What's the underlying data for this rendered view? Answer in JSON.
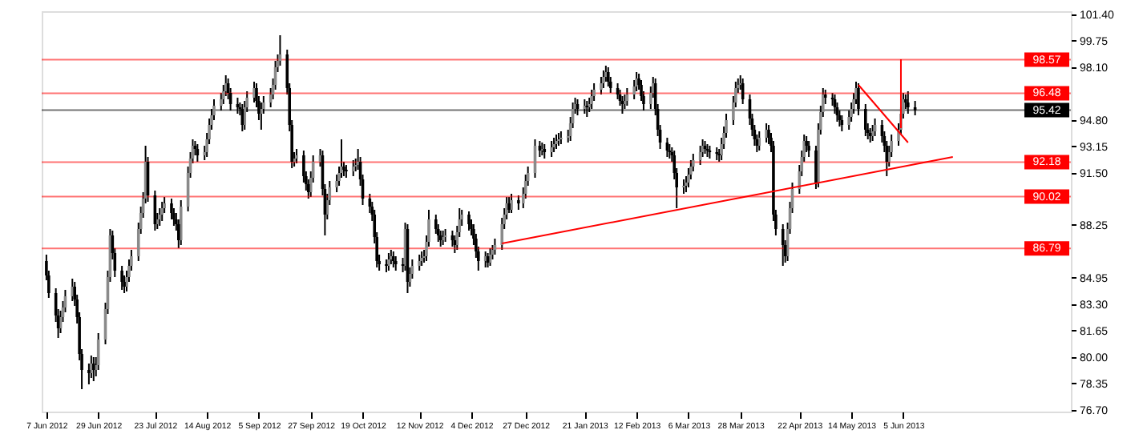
{
  "chart_data": {
    "type": "candlestick",
    "x": [
      "2012-06-07",
      "2012-06-08",
      "2012-06-11",
      "2012-06-12",
      "2012-06-13",
      "2012-06-14",
      "2012-06-15",
      "2012-06-18",
      "2012-06-19",
      "2012-06-20",
      "2012-06-21",
      "2012-06-22",
      "2012-06-25",
      "2012-06-26",
      "2012-06-27",
      "2012-06-28",
      "2012-06-29",
      "2012-07-02",
      "2012-07-03",
      "2012-07-04",
      "2012-07-05",
      "2012-07-06",
      "2012-07-09",
      "2012-07-10",
      "2012-07-11",
      "2012-07-12",
      "2012-07-13",
      "2012-07-16",
      "2012-07-17",
      "2012-07-18",
      "2012-07-19",
      "2012-07-20",
      "2012-07-23",
      "2012-07-24",
      "2012-07-25",
      "2012-07-26",
      "2012-07-27",
      "2012-07-30",
      "2012-07-31",
      "2012-08-01",
      "2012-08-02",
      "2012-08-03",
      "2012-08-06",
      "2012-08-07",
      "2012-08-08",
      "2012-08-09",
      "2012-08-10",
      "2012-08-13",
      "2012-08-14",
      "2012-08-15",
      "2012-08-16",
      "2012-08-17",
      "2012-08-20",
      "2012-08-21",
      "2012-08-22",
      "2012-08-23",
      "2012-08-24",
      "2012-08-27",
      "2012-08-28",
      "2012-08-29",
      "2012-08-30",
      "2012-08-31",
      "2012-09-03",
      "2012-09-04",
      "2012-09-05",
      "2012-09-06",
      "2012-09-07",
      "2012-09-10",
      "2012-09-11",
      "2012-09-12",
      "2012-09-13",
      "2012-09-14",
      "2012-09-17",
      "2012-09-18",
      "2012-09-19",
      "2012-09-20",
      "2012-09-21",
      "2012-09-24",
      "2012-09-25",
      "2012-09-26",
      "2012-09-27",
      "2012-09-28",
      "2012-10-01",
      "2012-10-02",
      "2012-10-03",
      "2012-10-04",
      "2012-10-05",
      "2012-10-08",
      "2012-10-09",
      "2012-10-10",
      "2012-10-11",
      "2012-10-12",
      "2012-10-15",
      "2012-10-16",
      "2012-10-17",
      "2012-10-18",
      "2012-10-19",
      "2012-10-22",
      "2012-10-23",
      "2012-10-24",
      "2012-10-25",
      "2012-10-26",
      "2012-10-29",
      "2012-10-30",
      "2012-10-31",
      "2012-11-01",
      "2012-11-02",
      "2012-11-05",
      "2012-11-06",
      "2012-11-07",
      "2012-11-08",
      "2012-11-09",
      "2012-11-12",
      "2012-11-13",
      "2012-11-14",
      "2012-11-15",
      "2012-11-16",
      "2012-11-19",
      "2012-11-20",
      "2012-11-21",
      "2012-11-22",
      "2012-11-23",
      "2012-11-26",
      "2012-11-27",
      "2012-11-28",
      "2012-11-29",
      "2012-11-30",
      "2012-12-03",
      "2012-12-04",
      "2012-12-05",
      "2012-12-06",
      "2012-12-07",
      "2012-12-10",
      "2012-12-11",
      "2012-12-12",
      "2012-12-13",
      "2012-12-14",
      "2012-12-17",
      "2012-12-18",
      "2012-12-19",
      "2012-12-20",
      "2012-12-21",
      "2012-12-24",
      "2012-12-26",
      "2012-12-27",
      "2012-12-28",
      "2012-12-31",
      "2013-01-02",
      "2013-01-03",
      "2013-01-04",
      "2013-01-07",
      "2013-01-08",
      "2013-01-09",
      "2013-01-10",
      "2013-01-11",
      "2013-01-14",
      "2013-01-15",
      "2013-01-16",
      "2013-01-17",
      "2013-01-18",
      "2013-01-21",
      "2013-01-22",
      "2013-01-23",
      "2013-01-24",
      "2013-01-25",
      "2013-01-28",
      "2013-01-29",
      "2013-01-30",
      "2013-01-31",
      "2013-02-01",
      "2013-02-04",
      "2013-02-05",
      "2013-02-06",
      "2013-02-07",
      "2013-02-08",
      "2013-02-11",
      "2013-02-12",
      "2013-02-13",
      "2013-02-14",
      "2013-02-15",
      "2013-02-18",
      "2013-02-19",
      "2013-02-20",
      "2013-02-21",
      "2013-02-22",
      "2013-02-25",
      "2013-02-26",
      "2013-02-27",
      "2013-02-28",
      "2013-03-01",
      "2013-03-04",
      "2013-03-05",
      "2013-03-06",
      "2013-03-07",
      "2013-03-08",
      "2013-03-11",
      "2013-03-12",
      "2013-03-13",
      "2013-03-14",
      "2013-03-15",
      "2013-03-18",
      "2013-03-19",
      "2013-03-20",
      "2013-03-21",
      "2013-03-22",
      "2013-03-25",
      "2013-03-26",
      "2013-03-27",
      "2013-03-28",
      "2013-03-29",
      "2013-04-01",
      "2013-04-02",
      "2013-04-03",
      "2013-04-04",
      "2013-04-05",
      "2013-04-08",
      "2013-04-09",
      "2013-04-10",
      "2013-04-11",
      "2013-04-12",
      "2013-04-15",
      "2013-04-16",
      "2013-04-17",
      "2013-04-18",
      "2013-04-19",
      "2013-04-22",
      "2013-04-23",
      "2013-04-24",
      "2013-04-25",
      "2013-04-26",
      "2013-04-29",
      "2013-04-30",
      "2013-05-01",
      "2013-05-02",
      "2013-05-03",
      "2013-05-06",
      "2013-05-07",
      "2013-05-08",
      "2013-05-09",
      "2013-05-10",
      "2013-05-13",
      "2013-05-14",
      "2013-05-15",
      "2013-05-16",
      "2013-05-17",
      "2013-05-20",
      "2013-05-21",
      "2013-05-22",
      "2013-05-23",
      "2013-05-24",
      "2013-05-27",
      "2013-05-28",
      "2013-05-29",
      "2013-05-30",
      "2013-05-31",
      "2013-06-03",
      "2013-06-04",
      "2013-06-05",
      "2013-06-06",
      "2013-06-07",
      "2013-06-10"
    ],
    "ohlc": [
      [
        86.0,
        86.4,
        84.8,
        85.1
      ],
      [
        85.1,
        85.4,
        83.7,
        84.0
      ],
      [
        84.0,
        84.3,
        82.2,
        82.6
      ],
      [
        82.6,
        83.0,
        81.2,
        81.8
      ],
      [
        81.8,
        82.9,
        81.5,
        82.5
      ],
      [
        82.5,
        83.5,
        82.2,
        83.1
      ],
      [
        83.1,
        84.2,
        82.8,
        83.8
      ],
      [
        83.8,
        84.9,
        83.5,
        84.4
      ],
      [
        84.4,
        84.7,
        83.2,
        83.6
      ],
      [
        83.6,
        83.9,
        82.1,
        82.5
      ],
      [
        82.5,
        82.8,
        79.8,
        80.2
      ],
      [
        80.2,
        80.5,
        78.0,
        79.2
      ],
      [
        79.2,
        79.6,
        78.3,
        79.0
      ],
      [
        79.0,
        80.1,
        78.7,
        79.6
      ],
      [
        79.6,
        80.0,
        78.5,
        79.2
      ],
      [
        79.2,
        80.0,
        78.8,
        79.5
      ],
      [
        79.5,
        81.5,
        79.2,
        81.1
      ],
      [
        81.1,
        83.4,
        80.8,
        83.0
      ],
      [
        83.0,
        85.4,
        82.7,
        85.0
      ],
      [
        85.0,
        88.0,
        84.7,
        87.6
      ],
      [
        87.6,
        87.9,
        86.1,
        86.5
      ],
      [
        86.5,
        86.8,
        85.0,
        85.4
      ],
      [
        85.4,
        85.7,
        84.2,
        84.7
      ],
      [
        84.7,
        85.1,
        84.0,
        84.4
      ],
      [
        84.4,
        85.4,
        84.1,
        85.0
      ],
      [
        85.0,
        86.1,
        84.7,
        85.7
      ],
      [
        85.7,
        86.7,
        85.4,
        86.3
      ],
      [
        86.3,
        88.4,
        86.0,
        88.0
      ],
      [
        88.0,
        89.4,
        87.7,
        89.0
      ],
      [
        89.0,
        90.3,
        88.7,
        89.9
      ],
      [
        89.9,
        93.2,
        89.6,
        92.2
      ],
      [
        92.2,
        92.5,
        89.7,
        90.1
      ],
      [
        90.1,
        90.4,
        87.9,
        88.3
      ],
      [
        88.3,
        89.0,
        88.0,
        88.6
      ],
      [
        88.6,
        89.3,
        88.2,
        88.9
      ],
      [
        88.9,
        89.7,
        88.5,
        89.3
      ],
      [
        89.3,
        90.0,
        89.0,
        89.6
      ],
      [
        89.6,
        89.9,
        88.6,
        89.0
      ],
      [
        89.0,
        89.3,
        88.2,
        88.6
      ],
      [
        88.6,
        89.0,
        87.9,
        88.3
      ],
      [
        88.3,
        88.6,
        86.8,
        87.3
      ],
      [
        87.3,
        89.8,
        87.0,
        89.4
      ],
      [
        89.4,
        91.9,
        89.1,
        91.5
      ],
      [
        91.5,
        92.8,
        91.2,
        92.4
      ],
      [
        92.4,
        93.6,
        92.1,
        93.2
      ],
      [
        93.2,
        93.5,
        92.6,
        93.0
      ],
      [
        93.0,
        93.3,
        92.2,
        92.6
      ],
      [
        92.6,
        93.2,
        92.3,
        92.8
      ],
      [
        92.8,
        94.0,
        92.5,
        93.6
      ],
      [
        93.6,
        94.9,
        93.3,
        94.5
      ],
      [
        94.5,
        95.5,
        94.2,
        95.1
      ],
      [
        95.1,
        96.1,
        94.8,
        95.7
      ],
      [
        95.7,
        96.5,
        95.4,
        96.1
      ],
      [
        96.1,
        97.0,
        95.8,
        96.6
      ],
      [
        96.6,
        97.6,
        96.3,
        97.1
      ],
      [
        97.1,
        97.4,
        96.1,
        96.5
      ],
      [
        96.5,
        96.8,
        95.4,
        95.8
      ],
      [
        95.8,
        96.2,
        95.2,
        95.6
      ],
      [
        95.6,
        95.9,
        95.1,
        95.5
      ],
      [
        95.5,
        95.8,
        94.1,
        94.5
      ],
      [
        94.5,
        96.0,
        94.2,
        95.6
      ],
      [
        95.6,
        96.6,
        95.3,
        96.2
      ],
      [
        96.2,
        97.2,
        95.9,
        96.8
      ],
      [
        96.8,
        97.1,
        95.6,
        96.0
      ],
      [
        96.0,
        96.3,
        94.8,
        95.2
      ],
      [
        95.2,
        95.9,
        94.2,
        95.5
      ],
      [
        95.5,
        96.3,
        95.2,
        95.9
      ],
      [
        95.9,
        96.8,
        95.6,
        96.4
      ],
      [
        96.4,
        97.4,
        96.1,
        97.0
      ],
      [
        97.0,
        98.5,
        96.7,
        98.1
      ],
      [
        98.1,
        98.9,
        97.8,
        98.5
      ],
      [
        98.5,
        100.1,
        98.2,
        98.9
      ],
      [
        98.9,
        99.2,
        96.4,
        96.8
      ],
      [
        96.8,
        97.1,
        94.1,
        94.5
      ],
      [
        94.5,
        94.8,
        91.8,
        92.2
      ],
      [
        92.2,
        92.8,
        91.9,
        92.4
      ],
      [
        92.4,
        93.0,
        92.1,
        92.6
      ],
      [
        92.6,
        92.9,
        90.9,
        91.3
      ],
      [
        91.3,
        91.6,
        90.4,
        90.8
      ],
      [
        90.8,
        91.1,
        89.9,
        90.3
      ],
      [
        90.3,
        91.6,
        90.0,
        91.2
      ],
      [
        91.2,
        92.6,
        90.9,
        92.2
      ],
      [
        92.2,
        93.0,
        91.9,
        92.6
      ],
      [
        92.6,
        92.9,
        90.1,
        90.5
      ],
      [
        90.5,
        90.8,
        87.6,
        88.9
      ],
      [
        88.9,
        90.2,
        88.6,
        89.8
      ],
      [
        89.8,
        91.0,
        89.5,
        90.6
      ],
      [
        90.6,
        91.4,
        90.3,
        91.0
      ],
      [
        91.0,
        91.9,
        90.7,
        91.5
      ],
      [
        91.5,
        93.6,
        91.2,
        91.9
      ],
      [
        91.9,
        92.2,
        91.3,
        91.7
      ],
      [
        91.7,
        92.0,
        91.2,
        91.6
      ],
      [
        91.6,
        92.3,
        91.3,
        91.9
      ],
      [
        91.9,
        92.4,
        91.6,
        92.0
      ],
      [
        92.0,
        93.0,
        91.7,
        92.2
      ],
      [
        92.2,
        92.5,
        90.7,
        91.1
      ],
      [
        91.1,
        91.4,
        89.5,
        89.9
      ],
      [
        89.9,
        90.2,
        89.0,
        89.4
      ],
      [
        89.4,
        89.7,
        88.5,
        88.9
      ],
      [
        88.9,
        89.2,
        87.1,
        87.5
      ],
      [
        87.5,
        87.8,
        85.6,
        86.0
      ],
      [
        86.0,
        86.4,
        85.4,
        85.8
      ],
      [
        85.8,
        86.1,
        85.3,
        85.7
      ],
      [
        85.7,
        86.5,
        85.4,
        86.1
      ],
      [
        86.1,
        86.7,
        85.8,
        86.3
      ],
      [
        86.3,
        86.6,
        85.6,
        86.0
      ],
      [
        86.0,
        86.3,
        85.4,
        85.8
      ],
      [
        85.8,
        86.2,
        85.3,
        85.7
      ],
      [
        85.7,
        88.4,
        85.4,
        88.0
      ],
      [
        88.0,
        88.3,
        84.0,
        84.7
      ],
      [
        84.7,
        85.6,
        84.4,
        85.2
      ],
      [
        85.2,
        86.1,
        84.9,
        85.7
      ],
      [
        85.7,
        86.4,
        85.4,
        86.0
      ],
      [
        86.0,
        86.6,
        85.7,
        86.2
      ],
      [
        86.2,
        86.7,
        85.9,
        86.3
      ],
      [
        86.3,
        87.6,
        86.0,
        87.2
      ],
      [
        87.2,
        89.2,
        86.9,
        88.6
      ],
      [
        88.6,
        88.9,
        87.7,
        88.0
      ],
      [
        88.0,
        88.3,
        87.2,
        87.6
      ],
      [
        87.6,
        87.9,
        86.9,
        87.3
      ],
      [
        87.3,
        87.9,
        87.0,
        87.5
      ],
      [
        87.5,
        88.0,
        87.2,
        87.6
      ],
      [
        87.6,
        87.9,
        86.9,
        87.3
      ],
      [
        87.3,
        87.6,
        86.5,
        87.0
      ],
      [
        87.0,
        88.2,
        86.7,
        87.8
      ],
      [
        87.8,
        89.3,
        87.5,
        88.6
      ],
      [
        88.6,
        89.2,
        88.2,
        88.9
      ],
      [
        88.9,
        89.1,
        87.9,
        88.3
      ],
      [
        88.3,
        88.6,
        87.6,
        88.0
      ],
      [
        88.0,
        88.3,
        87.0,
        87.4
      ],
      [
        87.4,
        87.7,
        86.2,
        86.6
      ],
      [
        86.6,
        86.9,
        85.4,
        86.0
      ],
      [
        86.0,
        86.6,
        85.6,
        86.3
      ],
      [
        86.3,
        86.5,
        85.6,
        85.9
      ],
      [
        85.9,
        86.8,
        85.7,
        86.4
      ],
      [
        86.4,
        87.0,
        86.1,
        86.7
      ],
      [
        86.7,
        87.4,
        86.4,
        87.0
      ],
      [
        87.0,
        88.7,
        86.7,
        88.3
      ],
      [
        88.3,
        89.3,
        88.0,
        88.9
      ],
      [
        88.9,
        90.0,
        88.6,
        89.6
      ],
      [
        89.6,
        90.0,
        89.0,
        89.2
      ],
      [
        89.2,
        90.2,
        89.0,
        89.8
      ],
      [
        89.8,
        90.1,
        89.2,
        89.6
      ],
      [
        89.6,
        90.6,
        89.3,
        90.2
      ],
      [
        90.2,
        91.4,
        89.9,
        91.0
      ],
      [
        91.0,
        91.9,
        90.7,
        91.5
      ],
      [
        91.5,
        93.6,
        91.2,
        93.2
      ],
      [
        93.2,
        93.5,
        92.5,
        92.9
      ],
      [
        92.9,
        93.4,
        92.6,
        93.0
      ],
      [
        93.0,
        93.3,
        92.4,
        92.8
      ],
      [
        92.8,
        93.5,
        92.5,
        93.1
      ],
      [
        93.1,
        93.7,
        92.8,
        93.3
      ],
      [
        93.3,
        93.9,
        93.0,
        93.5
      ],
      [
        93.5,
        94.0,
        93.2,
        93.6
      ],
      [
        93.6,
        94.1,
        93.3,
        93.7
      ],
      [
        93.7,
        94.2,
        93.4,
        93.8
      ],
      [
        93.8,
        95.0,
        93.5,
        94.6
      ],
      [
        94.6,
        95.9,
        94.3,
        95.5
      ],
      [
        95.5,
        96.2,
        95.2,
        95.8
      ],
      [
        95.8,
        96.1,
        95.1,
        95.5
      ],
      [
        95.5,
        96.1,
        95.2,
        95.7
      ],
      [
        95.7,
        96.0,
        95.0,
        95.6
      ],
      [
        95.6,
        96.2,
        95.3,
        95.8
      ],
      [
        95.8,
        96.7,
        95.5,
        96.3
      ],
      [
        96.3,
        97.1,
        96.0,
        96.7
      ],
      [
        96.7,
        97.5,
        96.4,
        97.1
      ],
      [
        97.1,
        97.9,
        96.8,
        97.5
      ],
      [
        97.5,
        98.2,
        97.2,
        97.8
      ],
      [
        97.8,
        98.1,
        96.9,
        97.2
      ],
      [
        97.2,
        97.5,
        96.5,
        96.8
      ],
      [
        96.8,
        97.1,
        96.1,
        96.4
      ],
      [
        96.4,
        96.7,
        95.7,
        96.0
      ],
      [
        96.0,
        96.3,
        95.2,
        95.8
      ],
      [
        95.8,
        96.4,
        95.5,
        96.0
      ],
      [
        96.0,
        96.8,
        95.7,
        96.4
      ],
      [
        96.4,
        97.3,
        96.1,
        96.9
      ],
      [
        96.9,
        97.8,
        96.6,
        97.4
      ],
      [
        97.4,
        97.7,
        96.7,
        97.0
      ],
      [
        97.0,
        97.3,
        96.0,
        96.3
      ],
      [
        96.3,
        96.6,
        95.4,
        95.8
      ],
      [
        95.8,
        96.9,
        95.5,
        96.5
      ],
      [
        96.5,
        97.5,
        96.2,
        97.1
      ],
      [
        97.1,
        97.4,
        95.1,
        95.5
      ],
      [
        95.5,
        95.8,
        93.8,
        94.2
      ],
      [
        94.2,
        94.5,
        93.0,
        93.4
      ],
      [
        93.4,
        93.7,
        92.5,
        92.9
      ],
      [
        92.9,
        93.3,
        92.4,
        92.8
      ],
      [
        92.8,
        93.1,
        92.2,
        92.6
      ],
      [
        92.6,
        92.9,
        91.1,
        91.5
      ],
      [
        91.5,
        91.8,
        89.3,
        90.6
      ],
      [
        90.6,
        91.1,
        90.2,
        90.7
      ],
      [
        90.7,
        91.3,
        90.3,
        90.9
      ],
      [
        90.9,
        91.8,
        90.6,
        91.4
      ],
      [
        91.4,
        92.3,
        91.1,
        91.9
      ],
      [
        91.9,
        92.7,
        91.6,
        92.3
      ],
      [
        92.3,
        93.2,
        92.0,
        92.8
      ],
      [
        92.8,
        93.6,
        92.5,
        93.2
      ],
      [
        93.2,
        93.5,
        92.7,
        93.0
      ],
      [
        93.0,
        93.3,
        92.5,
        92.9
      ],
      [
        92.9,
        93.2,
        92.4,
        92.8
      ],
      [
        92.8,
        93.1,
        92.3,
        92.7
      ],
      [
        92.7,
        93.0,
        92.2,
        92.6
      ],
      [
        92.6,
        93.7,
        92.3,
        93.3
      ],
      [
        93.3,
        94.4,
        93.0,
        94.0
      ],
      [
        94.0,
        95.2,
        93.7,
        94.8
      ],
      [
        94.8,
        96.3,
        94.5,
        95.9
      ],
      [
        95.9,
        97.2,
        95.6,
        96.8
      ],
      [
        96.8,
        97.4,
        96.5,
        97.0
      ],
      [
        97.0,
        97.6,
        96.7,
        97.1
      ],
      [
        97.1,
        97.4,
        95.8,
        96.1
      ],
      [
        96.1,
        96.4,
        94.5,
        94.9
      ],
      [
        94.9,
        95.2,
        93.8,
        94.2
      ],
      [
        94.2,
        94.5,
        93.2,
        93.6
      ],
      [
        93.6,
        93.9,
        92.8,
        93.2
      ],
      [
        93.2,
        94.1,
        92.9,
        93.7
      ],
      [
        93.7,
        94.6,
        93.4,
        94.2
      ],
      [
        94.2,
        94.5,
        93.3,
        93.7
      ],
      [
        93.7,
        94.0,
        92.8,
        93.2
      ],
      [
        93.2,
        93.5,
        88.5,
        88.9
      ],
      [
        88.9,
        89.2,
        87.6,
        88.0
      ],
      [
        88.0,
        88.3,
        85.7,
        87.0
      ],
      [
        87.0,
        87.3,
        85.9,
        86.3
      ],
      [
        86.3,
        88.4,
        86.0,
        88.0
      ],
      [
        88.0,
        89.7,
        87.7,
        89.3
      ],
      [
        89.3,
        90.9,
        89.0,
        90.5
      ],
      [
        90.5,
        92.0,
        90.2,
        91.6
      ],
      [
        91.6,
        92.9,
        91.3,
        92.5
      ],
      [
        92.5,
        93.9,
        92.2,
        93.5
      ],
      [
        93.5,
        93.8,
        92.8,
        93.2
      ],
      [
        93.2,
        93.5,
        92.5,
        92.9
      ],
      [
        92.9,
        93.2,
        90.5,
        90.9
      ],
      [
        90.9,
        94.6,
        90.6,
        94.2
      ],
      [
        94.2,
        95.7,
        93.9,
        95.3
      ],
      [
        95.3,
        96.8,
        95.0,
        96.4
      ],
      [
        96.4,
        96.7,
        95.8,
        96.2
      ],
      [
        96.2,
        96.5,
        95.7,
        96.1
      ],
      [
        96.1,
        96.4,
        95.2,
        95.6
      ],
      [
        95.6,
        95.9,
        94.7,
        95.1
      ],
      [
        95.1,
        95.4,
        94.4,
        94.8
      ],
      [
        94.8,
        95.1,
        94.1,
        94.5
      ],
      [
        94.5,
        95.4,
        94.2,
        95.0
      ],
      [
        95.0,
        95.9,
        94.7,
        95.5
      ],
      [
        95.5,
        96.5,
        95.2,
        96.1
      ],
      [
        96.1,
        97.2,
        95.8,
        96.8
      ],
      [
        96.8,
        97.1,
        95.1,
        95.5
      ],
      [
        95.5,
        95.8,
        93.8,
        94.2
      ],
      [
        94.2,
        94.6,
        93.6,
        94.0
      ],
      [
        94.0,
        94.3,
        93.4,
        93.8
      ],
      [
        93.8,
        94.5,
        93.5,
        94.1
      ],
      [
        94.1,
        94.9,
        93.8,
        94.5
      ],
      [
        94.5,
        94.8,
        93.4,
        93.8
      ],
      [
        93.8,
        94.1,
        92.8,
        93.2
      ],
      [
        93.2,
        93.5,
        91.3,
        92.2
      ],
      [
        92.2,
        93.2,
        91.9,
        92.8
      ],
      [
        92.8,
        93.9,
        92.5,
        93.5
      ],
      [
        93.5,
        94.6,
        93.2,
        94.2
      ],
      [
        94.2,
        95.6,
        93.9,
        95.2
      ],
      [
        95.2,
        96.5,
        94.9,
        96.1
      ],
      [
        96.1,
        96.4,
        95.5,
        95.9
      ],
      [
        95.9,
        96.6,
        95.2,
        95.6
      ],
      [
        95.6,
        96.0,
        95.1,
        95.42
      ]
    ],
    "series": [
      {
        "type": "line",
        "color": "#ff0000",
        "x": [
          "2012-12-17",
          "2013-06-26"
        ],
        "values": [
          87.1,
          92.5
        ]
      },
      {
        "type": "line",
        "color": "#ff0000",
        "x": [
          "2013-05-17",
          "2013-06-07"
        ],
        "values": [
          97.0,
          93.4
        ]
      },
      {
        "type": "line",
        "color": "#ff0000",
        "x": [
          "2013-06-04",
          "2013-06-04"
        ],
        "values": [
          98.6,
          94.3
        ]
      }
    ],
    "ref_lines": [
      {
        "axis": "y",
        "value": 98.57,
        "label": "98.57",
        "color": "#ff0000"
      },
      {
        "axis": "y",
        "value": 96.48,
        "label": "96.48",
        "color": "#ff0000"
      },
      {
        "axis": "y",
        "value": 95.42,
        "label": "95.42",
        "color": "#000000"
      },
      {
        "axis": "y",
        "value": 92.18,
        "label": "92.18",
        "color": "#ff0000"
      },
      {
        "axis": "y",
        "value": 90.02,
        "label": "90.02",
        "color": "#ff0000"
      },
      {
        "axis": "y",
        "value": 86.79,
        "label": "86.79",
        "color": "#ff0000"
      }
    ],
    "xlim": [
      "2012-06-05",
      "2013-08-15"
    ],
    "xticks": [
      {
        "value": "2012-06-07",
        "label": "7 Jun 2012"
      },
      {
        "value": "2012-06-29",
        "label": "29 Jun 2012"
      },
      {
        "value": "2012-07-23",
        "label": "23 Jul 2012"
      },
      {
        "value": "2012-08-14",
        "label": "14 Aug 2012"
      },
      {
        "value": "2012-09-05",
        "label": "5 Sep 2012"
      },
      {
        "value": "2012-09-27",
        "label": "27 Sep 2012"
      },
      {
        "value": "2012-10-19",
        "label": "19 Oct 2012"
      },
      {
        "value": "2012-11-12",
        "label": "12 Nov 2012"
      },
      {
        "value": "2012-12-04",
        "label": "4 Dec 2012"
      },
      {
        "value": "2012-12-27",
        "label": "27 Dec 2012"
      },
      {
        "value": "2013-01-21",
        "label": "21 Jan 2013"
      },
      {
        "value": "2013-02-12",
        "label": "12 Feb 2013"
      },
      {
        "value": "2013-03-06",
        "label": "6 Mar 2013"
      },
      {
        "value": "2013-03-28",
        "label": "28 Mar 2013"
      },
      {
        "value": "2013-04-22",
        "label": "22 Apr 2013"
      },
      {
        "value": "2013-05-14",
        "label": "14 May 2013"
      },
      {
        "value": "2013-06-05",
        "label": "5 Jun 2013"
      }
    ],
    "ylim": [
      76.6,
      101.6
    ],
    "yticks": [
      {
        "value": 101.4,
        "label": "101.40"
      },
      {
        "value": 99.75,
        "label": "99.75"
      },
      {
        "value": 98.1,
        "label": "98.10"
      },
      {
        "value": 94.8,
        "label": "94.80"
      },
      {
        "value": 93.15,
        "label": "93.15"
      },
      {
        "value": 91.5,
        "label": "91.50"
      },
      {
        "value": 88.25,
        "label": "88.25"
      },
      {
        "value": 84.95,
        "label": "84.95"
      },
      {
        "value": 83.3,
        "label": "83.30"
      },
      {
        "value": 81.65,
        "label": "81.65"
      },
      {
        "value": 80.0,
        "label": "80.00"
      },
      {
        "value": 78.35,
        "label": "78.35"
      },
      {
        "value": 76.7,
        "label": "76.70"
      }
    ]
  }
}
